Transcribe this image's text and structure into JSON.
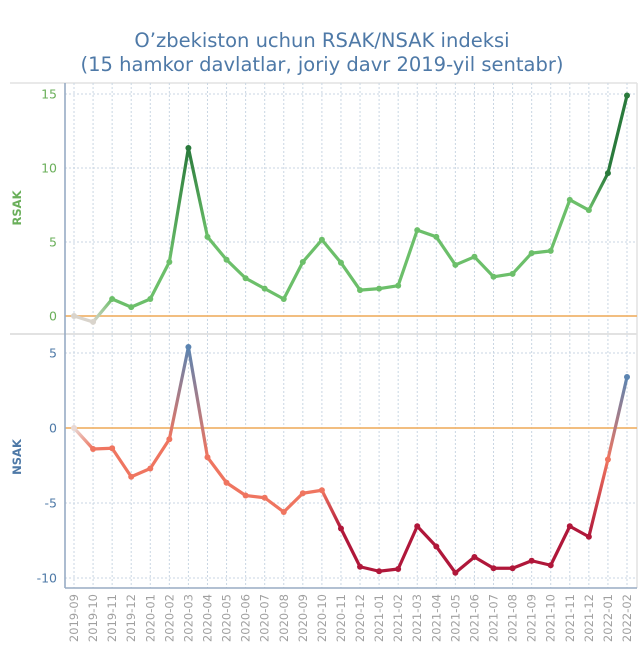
{
  "title_line1": "O’zbekiston uchun RSAK/NSAK indeksi",
  "title_line2": "(15 hamkor davlatlar, joriy davr 2019-yil sentabr)",
  "colors": {
    "title": "#4e79a7",
    "rsak_axis": "#6aaf5a",
    "nsak_axis": "#4e79a7",
    "zero_line": "#f0b46e",
    "grid": "#c9d6e3",
    "axis_line": "#98acc4",
    "rsak_light": "#d9d4cc",
    "rsak_mid": "#6cbf6a",
    "rsak_dark": "#2a7a3c",
    "nsak_light": "#e8d8d4",
    "nsak_mid": "#ef7560",
    "nsak_dark": "#b0173a",
    "nsak_pos": "#5b84b1"
  },
  "chart_data": [
    {
      "type": "line",
      "title": "O’zbekiston uchun RSAK/NSAK indeksi (15 hamkor davlatlar, joriy davr 2019-yil sentabr)",
      "ylabel": "RSAK",
      "xlabel": "",
      "ylim": [
        -1.5,
        15.5
      ],
      "yticks": [
        0,
        5,
        10,
        15
      ],
      "grid": true,
      "reference_line": 0,
      "x": [
        "2019-09",
        "2019-10",
        "2019-11",
        "2019-12",
        "2020-01",
        "2020-02",
        "2020-03",
        "2020-04",
        "2020-05",
        "2020-06",
        "2020-07",
        "2020-08",
        "2020-09",
        "2020-10",
        "2020-11",
        "2020-12",
        "2021-01",
        "2021-02",
        "2021-03",
        "2021-04",
        "2021-05",
        "2021-06",
        "2021-07",
        "2021-08",
        "2021-09",
        "2021-10",
        "2021-11",
        "2021-12",
        "2022-01",
        "2022-02"
      ],
      "series": [
        {
          "name": "RSAK",
          "values": [
            0.0,
            -0.4,
            1.15,
            0.6,
            1.15,
            3.65,
            11.35,
            5.35,
            3.8,
            2.55,
            1.85,
            1.15,
            3.65,
            5.15,
            3.6,
            1.75,
            1.85,
            2.05,
            5.8,
            5.35,
            3.45,
            4.0,
            2.65,
            2.85,
            4.25,
            4.4,
            7.85,
            7.15,
            9.65,
            14.9
          ]
        }
      ]
    },
    {
      "type": "line",
      "ylabel": "NSAK",
      "xlabel": "",
      "ylim": [
        -10.2,
        6.0
      ],
      "yticks": [
        -10,
        -5,
        0,
        5
      ],
      "grid": true,
      "reference_line": 0,
      "x": [
        "2019-09",
        "2019-10",
        "2019-11",
        "2019-12",
        "2020-01",
        "2020-02",
        "2020-03",
        "2020-04",
        "2020-05",
        "2020-06",
        "2020-07",
        "2020-08",
        "2020-09",
        "2020-10",
        "2020-11",
        "2020-12",
        "2021-01",
        "2021-02",
        "2021-03",
        "2021-04",
        "2021-05",
        "2021-06",
        "2021-07",
        "2021-08",
        "2021-09",
        "2021-10",
        "2021-11",
        "2021-12",
        "2022-01",
        "2022-02"
      ],
      "series": [
        {
          "name": "NSAK",
          "values": [
            0.0,
            -1.4,
            -1.35,
            -3.25,
            -2.7,
            -0.75,
            5.4,
            -1.95,
            -3.65,
            -4.5,
            -4.65,
            -5.6,
            -4.35,
            -4.15,
            -6.7,
            -9.25,
            -9.55,
            -9.4,
            -6.55,
            -7.9,
            -9.65,
            -8.6,
            -9.35,
            -9.35,
            -8.85,
            -9.15,
            -6.55,
            -7.25,
            -2.1,
            3.4
          ]
        }
      ]
    }
  ]
}
